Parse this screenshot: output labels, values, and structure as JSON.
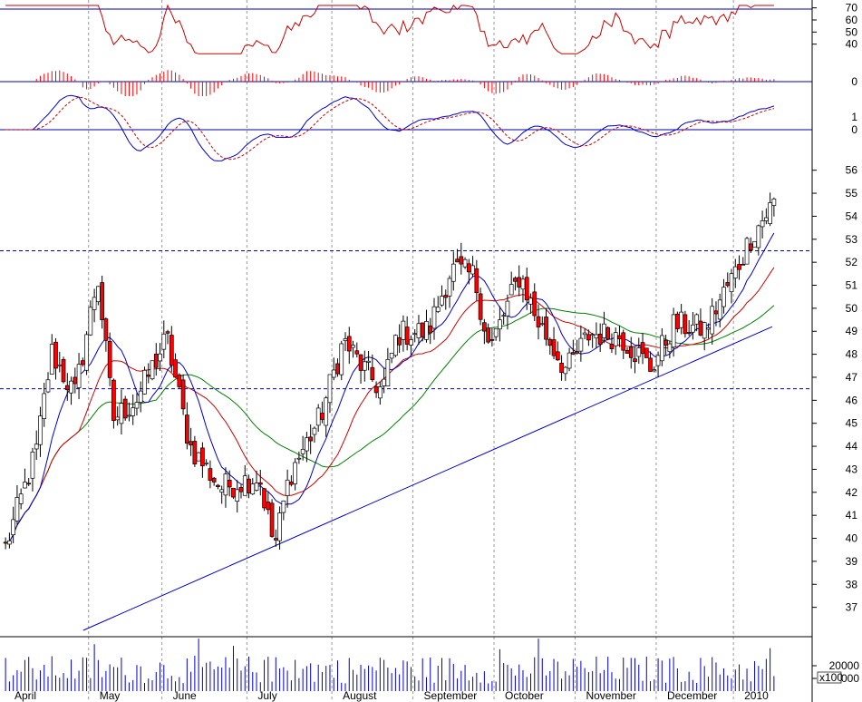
{
  "chart_data": {
    "type": "candlestick",
    "title": "",
    "months": [
      "April",
      "May",
      "June",
      "July",
      "August",
      "September",
      "October",
      "November",
      "December",
      "2010"
    ],
    "price_ticks": [
      37,
      38,
      39,
      40,
      41,
      42,
      43,
      44,
      45,
      46,
      47,
      48,
      49,
      50,
      51,
      52,
      53,
      54,
      55,
      56
    ],
    "price_range": [
      36,
      56.5
    ],
    "rsi_ticks": [
      40,
      50,
      60,
      70
    ],
    "rsi_range": [
      30,
      72
    ],
    "hist_ticks": [
      0
    ],
    "macd_ticks": [
      0,
      1
    ],
    "volume_ticks": [
      "20000",
      "10000"
    ],
    "volume_unit": "x100",
    "volume_range": [
      0,
      40000
    ],
    "horizontal_levels": [
      52.5,
      46.5
    ],
    "rsi_level": 70,
    "trendline": {
      "start": [
        0.15,
        36
      ],
      "end": [
        1.0,
        49.2
      ]
    },
    "colors": {
      "up": "#ffffff",
      "down": "#ff0000",
      "outline": "#000000",
      "ma_short": "#0000cc",
      "ma_mid": "#cc0000",
      "ma_long": "#008000",
      "rsi": "#cc0000",
      "macd": "#0000cc",
      "signal": "#cc0000",
      "volume": "#0000cc",
      "grid": "#999999",
      "level": "#0000aa"
    },
    "candle_count": 200,
    "path": [
      [
        0,
        39.6
      ],
      [
        0.04,
        43.8
      ],
      [
        0.06,
        48.1
      ],
      [
        0.09,
        46.2
      ],
      [
        0.12,
        51.4
      ],
      [
        0.14,
        45.2
      ],
      [
        0.17,
        46.0
      ],
      [
        0.21,
        48.7
      ],
      [
        0.24,
        44.0
      ],
      [
        0.28,
        42.2
      ],
      [
        0.33,
        42.7
      ],
      [
        0.35,
        39.6
      ],
      [
        0.37,
        42.8
      ],
      [
        0.41,
        45.3
      ],
      [
        0.44,
        48.6
      ],
      [
        0.47,
        47.2
      ],
      [
        0.49,
        46.4
      ],
      [
        0.51,
        48.9
      ],
      [
        0.55,
        49.0
      ],
      [
        0.58,
        51.7
      ],
      [
        0.61,
        51.4
      ],
      [
        0.63,
        48.2
      ],
      [
        0.67,
        51.5
      ],
      [
        0.69,
        49.6
      ],
      [
        0.73,
        47.3
      ],
      [
        0.76,
        48.9
      ],
      [
        0.8,
        48.8
      ],
      [
        0.84,
        47.4
      ],
      [
        0.87,
        49.3
      ],
      [
        0.91,
        49.1
      ],
      [
        0.95,
        51.6
      ],
      [
        0.97,
        53.1
      ],
      [
        1.0,
        54.6
      ]
    ]
  }
}
